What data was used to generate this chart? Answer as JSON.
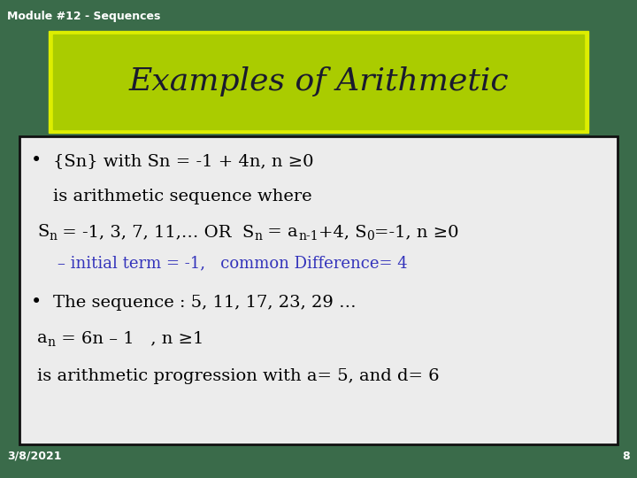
{
  "title": "Examples of Arithmetic",
  "module_label": "Module #12 - Sequences",
  "date_label": "3/8/2021",
  "page_number": "8",
  "background_color": "#3a6b4a",
  "title_bg_color": "#aacc00",
  "title_border_color": "#ddee00",
  "title_text_color": "#1a1a2e",
  "content_bg_color": "#ececec",
  "content_border_color": "#111111",
  "bullet1_line4_color": "#3333bb",
  "title_fontsize": 26,
  "module_fontsize": 9,
  "content_fontsize": 14,
  "sub_fontsize": 10,
  "small_fontsize": 13
}
